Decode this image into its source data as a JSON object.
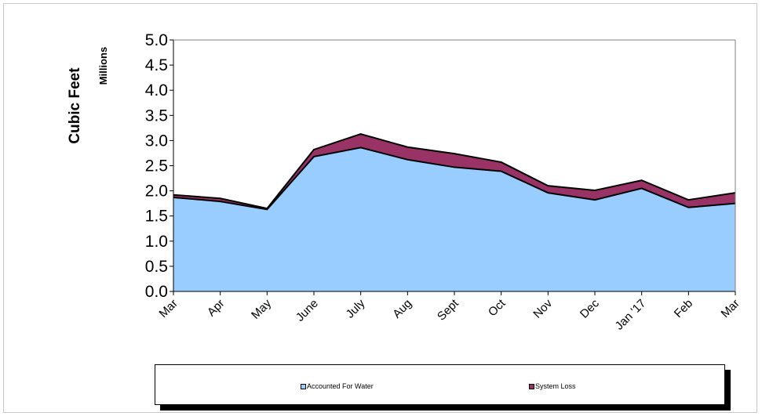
{
  "chart_data": {
    "type": "area",
    "stacked": true,
    "ylabel": "Cubic Feet",
    "yunit_label": "Millions",
    "ylim": [
      0,
      5.0
    ],
    "yticks": [
      "0.0",
      "0.5",
      "1.0",
      "1.5",
      "2.0",
      "2.5",
      "3.0",
      "3.5",
      "4.0",
      "4.5",
      "5.0"
    ],
    "categories": [
      "Mar",
      "Apr",
      "May",
      "June",
      "July",
      "Aug",
      "Sept",
      "Oct",
      "Nov",
      "Dec",
      "Jan '17",
      "Feb",
      "Mar"
    ],
    "series": [
      {
        "name": "Accounted For Water",
        "color": "#99ccff",
        "values": [
          1.87,
          1.79,
          1.63,
          2.68,
          2.86,
          2.62,
          2.47,
          2.39,
          1.96,
          1.82,
          2.05,
          1.67,
          1.75
        ]
      },
      {
        "name": "System Loss",
        "color": "#993366",
        "values": [
          0.05,
          0.06,
          0.02,
          0.14,
          0.27,
          0.25,
          0.27,
          0.18,
          0.14,
          0.19,
          0.16,
          0.15,
          0.21
        ]
      }
    ],
    "grid": false,
    "legend_position": "bottom"
  }
}
